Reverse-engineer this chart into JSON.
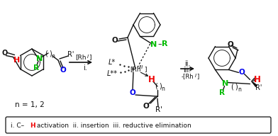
{
  "background_color": "#ffffff",
  "green_color": "#00bb00",
  "red_color": "#ee0000",
  "blue_color": "#0000ee",
  "black_color": "#111111",
  "figsize": [
    3.92,
    1.92
  ],
  "dpi": 100,
  "n_label": "n = 1, 2",
  "footnote_parts": [
    "i. C–",
    "H",
    " activation  ii. insertion  iii. reductive elimination"
  ]
}
